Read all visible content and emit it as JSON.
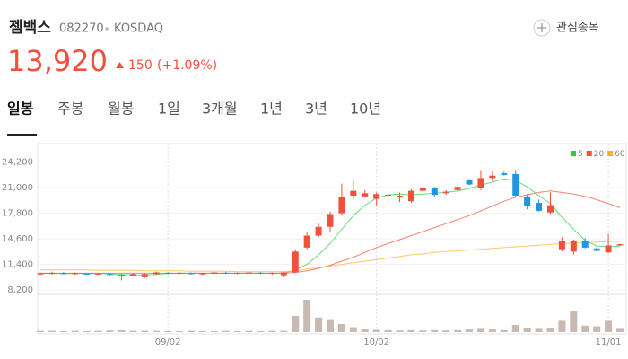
{
  "header": {
    "name": "젬백스",
    "code": "082270",
    "market": "KOSDAQ",
    "price": "13,920",
    "change": "150",
    "change_pct": "(+1.09%)",
    "watch": "관심종목"
  },
  "tabs": [
    "일봉",
    "주봉",
    "월봉",
    "1일",
    "3개월",
    "1년",
    "3년",
    "10년"
  ],
  "chart_data": {
    "type": "candlestick",
    "categories": [
      null,
      null,
      null,
      null,
      null,
      null,
      null,
      null,
      null,
      null,
      null,
      "09/02",
      null,
      null,
      null,
      null,
      null,
      null,
      null,
      null,
      null,
      null,
      null,
      null,
      null,
      null,
      null,
      null,
      null,
      "10/02",
      null,
      null,
      null,
      null,
      null,
      null,
      null,
      null,
      null,
      null,
      null,
      null,
      null,
      null,
      null,
      null,
      null,
      null,
      null,
      "11/01",
      null
    ],
    "candles": {
      "open": [
        10150,
        10250,
        10300,
        10200,
        10250,
        10200,
        10200,
        10100,
        9950,
        9800,
        10200,
        10350,
        10250,
        10300,
        10150,
        10250,
        10350,
        10250,
        10300,
        10350,
        10250,
        10050,
        10400,
        13500,
        15000,
        16100,
        17800,
        20000,
        19900,
        19600,
        20000,
        19800,
        19300,
        20600,
        20900,
        20300,
        20700,
        21900,
        20900,
        22200,
        22800,
        22700,
        19900,
        19100,
        17900,
        13300,
        13000,
        14400,
        13400,
        12900,
        13770
      ],
      "high": [
        10400,
        10500,
        10450,
        10400,
        10350,
        10350,
        10300,
        10200,
        10300,
        10300,
        10500,
        10450,
        10400,
        10400,
        10350,
        10450,
        10500,
        10400,
        10500,
        10450,
        10400,
        10500,
        13300,
        15400,
        16500,
        18000,
        21500,
        22000,
        20700,
        20400,
        20400,
        20400,
        20800,
        21000,
        21100,
        20700,
        21300,
        22100,
        23200,
        23000,
        23000,
        23200,
        20200,
        19500,
        20400,
        14800,
        14500,
        14700,
        13600,
        15200,
        14000
      ],
      "low": [
        10050,
        10150,
        10200,
        10100,
        10100,
        10100,
        10050,
        9400,
        9900,
        9700,
        10100,
        10200,
        10150,
        10150,
        10050,
        10150,
        10200,
        10150,
        10200,
        10200,
        10100,
        9800,
        10300,
        13300,
        14800,
        15500,
        17500,
        19500,
        19800,
        18700,
        19000,
        19200,
        19100,
        20400,
        19900,
        20100,
        20500,
        21300,
        20700,
        21800,
        22500,
        19900,
        18300,
        18000,
        17700,
        13000,
        12600,
        13400,
        13000,
        12800,
        13700
      ],
      "close": [
        10300,
        10350,
        10250,
        10300,
        10150,
        10250,
        10100,
        9900,
        10200,
        10200,
        10400,
        10300,
        10350,
        10200,
        10300,
        10400,
        10250,
        10350,
        10400,
        10250,
        10350,
        10400,
        13000,
        15000,
        16100,
        17700,
        19800,
        20600,
        20300,
        20200,
        20100,
        20000,
        20600,
        20900,
        20100,
        20500,
        21100,
        21400,
        22200,
        22500,
        22600,
        20000,
        18700,
        18100,
        18800,
        14300,
        14400,
        13500,
        13100,
        13770,
        13920
      ]
    },
    "up_color": "#f0503c",
    "down_color": "#1e96e6",
    "series": [
      {
        "name": "5",
        "color": "#2ecc40",
        "values": [
          10250,
          10250,
          10250,
          10250,
          10250,
          10250,
          10200,
          10150,
          10100,
          10100,
          10150,
          10250,
          10300,
          10300,
          10300,
          10300,
          10300,
          10300,
          10300,
          10300,
          10300,
          10300,
          10700,
          11400,
          12600,
          14000,
          15800,
          17500,
          18800,
          19700,
          20100,
          20200,
          20100,
          20200,
          20300,
          20400,
          20600,
          20900,
          21300,
          21700,
          22100,
          21900,
          21100,
          20000,
          19000,
          17300,
          15800,
          14400,
          13700,
          13600,
          13700
        ]
      },
      {
        "name": "20",
        "color": "#f0503c",
        "values": [
          10300,
          10300,
          10300,
          10300,
          10300,
          10300,
          10300,
          10300,
          10300,
          10300,
          10300,
          10300,
          10300,
          10300,
          10300,
          10300,
          10300,
          10300,
          10300,
          10300,
          10300,
          10300,
          10400,
          10600,
          10900,
          11300,
          11800,
          12300,
          12900,
          13500,
          14000,
          14500,
          15000,
          15500,
          16000,
          16500,
          17000,
          17500,
          18100,
          18700,
          19300,
          19800,
          20100,
          20400,
          20600,
          20400,
          20200,
          19900,
          19500,
          19000,
          18500
        ]
      },
      {
        "name": "60",
        "color": "#f5b428",
        "values": [
          10700,
          10700,
          10700,
          10700,
          10700,
          10650,
          10650,
          10650,
          10650,
          10600,
          10600,
          10600,
          10600,
          10550,
          10550,
          10550,
          10550,
          10500,
          10500,
          10500,
          10500,
          10500,
          10600,
          10800,
          11000,
          11200,
          11400,
          11600,
          11800,
          12000,
          12200,
          12400,
          12600,
          12700,
          12900,
          13000,
          13100,
          13200,
          13300,
          13400,
          13500,
          13600,
          13700,
          13800,
          13900,
          14000,
          14100,
          14150,
          14200,
          14250,
          14300
        ]
      }
    ],
    "volume": [
      4,
      4,
      3,
      4,
      3,
      4,
      5,
      6,
      4,
      4,
      4,
      3,
      3,
      4,
      3,
      3,
      4,
      3,
      4,
      3,
      4,
      4,
      50,
      100,
      45,
      40,
      25,
      15,
      8,
      7,
      6,
      5,
      6,
      5,
      6,
      5,
      6,
      8,
      10,
      8,
      6,
      22,
      12,
      10,
      12,
      35,
      65,
      20,
      18,
      35,
      10
    ],
    "volume_color": "#c8bab3",
    "volume_lim": [
      0,
      100
    ],
    "ylim": [
      7650,
      25950
    ],
    "yticks": [
      {
        "value": 8200,
        "label": "8,200"
      },
      {
        "value": 11400,
        "label": "11,400"
      },
      {
        "value": 14600,
        "label": "14,600"
      },
      {
        "value": 17800,
        "label": "17,800"
      },
      {
        "value": 21000,
        "label": "21,000"
      },
      {
        "value": 24200,
        "label": "24,200"
      }
    ],
    "grid": true,
    "legend": "top-right"
  }
}
